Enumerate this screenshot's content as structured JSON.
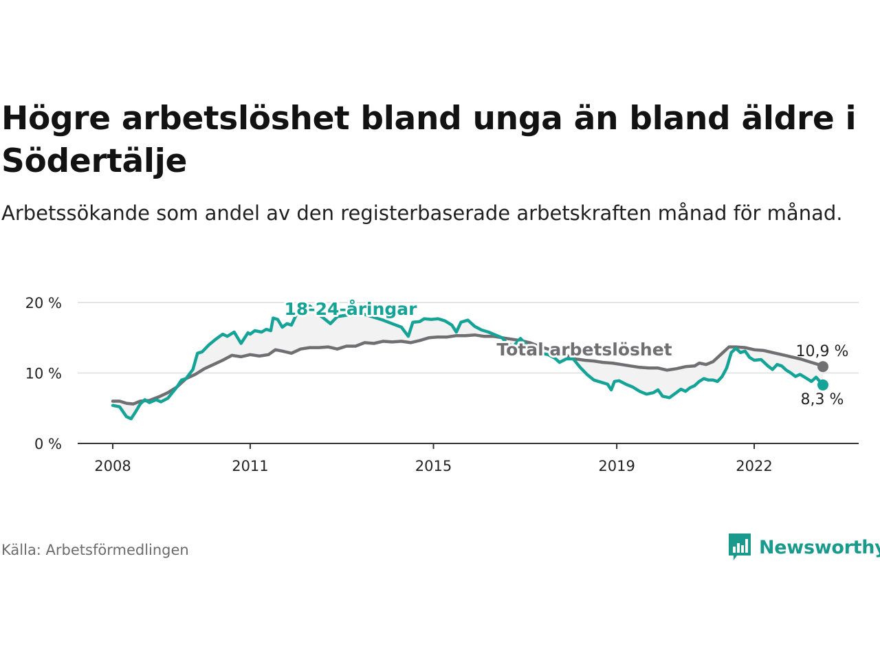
{
  "header": {
    "title": "Högre arbetslöshet bland unga än bland äldre i Södertälje",
    "subtitle": "Arbetssökande som andel av den registerbaserade arbetskraften månad för månad."
  },
  "footer": {
    "source": "Källa: Arbetsförmedlingen",
    "brand": "Newsworthy"
  },
  "colors": {
    "youth": "#14a396",
    "total": "#6f6f72",
    "gap_fill": "#f2f2f2",
    "grid": "#dcdcdc",
    "axis": "#333333",
    "brand": "#1a9a8c"
  },
  "chart_data": {
    "type": "line",
    "title": "Högre arbetslöshet bland unga än bland äldre i Södertälje",
    "xlabel": "",
    "ylabel": "",
    "ylim": [
      0,
      20
    ],
    "xlim": [
      2007.3,
      2023.75
    ],
    "y_ticks": [
      0,
      10,
      20
    ],
    "y_tick_labels": [
      "0 %",
      "10 %",
      "20 %"
    ],
    "x_ticks": [
      2008,
      2011,
      2015,
      2019,
      2022
    ],
    "x_tick_labels": [
      "2008",
      "2011",
      "2015",
      "2019",
      "2022"
    ],
    "grid": true,
    "series": [
      {
        "name": "18-24-åringar",
        "label": "18-24-åringar",
        "end_label": "8,3 %",
        "points": [
          [
            2008.0,
            5.4
          ],
          [
            2008.15,
            5.2
          ],
          [
            2008.3,
            3.8
          ],
          [
            2008.4,
            3.5
          ],
          [
            2008.5,
            4.5
          ],
          [
            2008.6,
            5.6
          ],
          [
            2008.7,
            6.2
          ],
          [
            2008.8,
            5.8
          ],
          [
            2008.95,
            6.2
          ],
          [
            2009.05,
            5.9
          ],
          [
            2009.2,
            6.4
          ],
          [
            2009.4,
            8.0
          ],
          [
            2009.5,
            9.0
          ],
          [
            2009.6,
            9.2
          ],
          [
            2009.75,
            10.5
          ],
          [
            2009.85,
            12.8
          ],
          [
            2009.95,
            13.0
          ],
          [
            2010.1,
            14.0
          ],
          [
            2010.25,
            14.8
          ],
          [
            2010.4,
            15.5
          ],
          [
            2010.5,
            15.2
          ],
          [
            2010.65,
            15.8
          ],
          [
            2010.8,
            14.2
          ],
          [
            2010.95,
            15.7
          ],
          [
            2011.0,
            15.5
          ],
          [
            2011.1,
            16.0
          ],
          [
            2011.25,
            15.8
          ],
          [
            2011.35,
            16.2
          ],
          [
            2011.45,
            16.0
          ],
          [
            2011.5,
            17.8
          ],
          [
            2011.6,
            17.6
          ],
          [
            2011.7,
            16.5
          ],
          [
            2011.8,
            17.0
          ],
          [
            2011.9,
            16.8
          ],
          [
            2012.0,
            18.2
          ],
          [
            2012.15,
            18.9
          ],
          [
            2012.3,
            19.5
          ],
          [
            2012.45,
            18.5
          ],
          [
            2012.6,
            17.8
          ],
          [
            2012.75,
            17.0
          ],
          [
            2012.9,
            18.0
          ],
          [
            2013.1,
            18.2
          ],
          [
            2013.3,
            18.5
          ],
          [
            2013.5,
            18.3
          ],
          [
            2013.7,
            17.9
          ],
          [
            2013.9,
            17.5
          ],
          [
            2014.1,
            17.0
          ],
          [
            2014.3,
            16.5
          ],
          [
            2014.45,
            15.2
          ],
          [
            2014.55,
            17.2
          ],
          [
            2014.7,
            17.3
          ],
          [
            2014.8,
            17.7
          ],
          [
            2014.95,
            17.6
          ],
          [
            2015.1,
            17.7
          ],
          [
            2015.25,
            17.4
          ],
          [
            2015.4,
            16.8
          ],
          [
            2015.5,
            15.8
          ],
          [
            2015.6,
            17.2
          ],
          [
            2015.75,
            17.5
          ],
          [
            2015.9,
            16.6
          ],
          [
            2016.05,
            16.1
          ],
          [
            2016.2,
            15.8
          ],
          [
            2016.35,
            15.4
          ],
          [
            2016.5,
            15.0
          ],
          [
            2016.6,
            14.2
          ],
          [
            2016.75,
            13.8
          ],
          [
            2016.9,
            14.9
          ],
          [
            2017.05,
            13.8
          ],
          [
            2017.2,
            13.4
          ],
          [
            2017.35,
            12.8
          ],
          [
            2017.5,
            12.6
          ],
          [
            2017.65,
            12.1
          ],
          [
            2017.75,
            11.5
          ],
          [
            2017.9,
            12.0
          ],
          [
            2018.05,
            12.0
          ],
          [
            2018.2,
            10.8
          ],
          [
            2018.35,
            9.8
          ],
          [
            2018.5,
            9.0
          ],
          [
            2018.65,
            8.7
          ],
          [
            2018.8,
            8.4
          ],
          [
            2018.88,
            7.6
          ],
          [
            2018.95,
            8.8
          ],
          [
            2019.05,
            8.9
          ],
          [
            2019.2,
            8.4
          ],
          [
            2019.35,
            8.0
          ],
          [
            2019.5,
            7.4
          ],
          [
            2019.65,
            7.0
          ],
          [
            2019.8,
            7.2
          ],
          [
            2019.9,
            7.6
          ],
          [
            2020.0,
            6.7
          ],
          [
            2020.15,
            6.5
          ],
          [
            2020.3,
            7.2
          ],
          [
            2020.4,
            7.7
          ],
          [
            2020.5,
            7.4
          ],
          [
            2020.6,
            7.9
          ],
          [
            2020.7,
            8.2
          ],
          [
            2020.8,
            8.8
          ],
          [
            2020.9,
            9.2
          ],
          [
            2021.0,
            9.0
          ],
          [
            2021.1,
            9.0
          ],
          [
            2021.2,
            8.8
          ],
          [
            2021.3,
            9.5
          ],
          [
            2021.4,
            10.7
          ],
          [
            2021.5,
            12.9
          ],
          [
            2021.6,
            13.5
          ],
          [
            2021.7,
            12.9
          ],
          [
            2021.8,
            13.1
          ],
          [
            2021.9,
            12.2
          ],
          [
            2022.0,
            11.8
          ],
          [
            2022.15,
            11.9
          ],
          [
            2022.3,
            11.0
          ],
          [
            2022.4,
            10.5
          ],
          [
            2022.5,
            11.2
          ],
          [
            2022.6,
            11.0
          ],
          [
            2022.7,
            10.4
          ],
          [
            2022.8,
            10.0
          ],
          [
            2022.9,
            9.5
          ],
          [
            2023.0,
            9.8
          ],
          [
            2023.1,
            9.4
          ],
          [
            2023.25,
            8.8
          ],
          [
            2023.35,
            9.4
          ],
          [
            2023.5,
            8.3
          ]
        ]
      },
      {
        "name": "Total arbetslöshet",
        "label": "Total arbetslöshet",
        "end_label": "10,9 %",
        "points": [
          [
            2008.0,
            6.0
          ],
          [
            2008.15,
            6.0
          ],
          [
            2008.3,
            5.7
          ],
          [
            2008.45,
            5.6
          ],
          [
            2008.6,
            6.0
          ],
          [
            2008.8,
            6.1
          ],
          [
            2009.0,
            6.6
          ],
          [
            2009.2,
            7.2
          ],
          [
            2009.4,
            8.0
          ],
          [
            2009.6,
            9.2
          ],
          [
            2009.8,
            9.8
          ],
          [
            2010.0,
            10.6
          ],
          [
            2010.2,
            11.2
          ],
          [
            2010.4,
            11.8
          ],
          [
            2010.6,
            12.5
          ],
          [
            2010.8,
            12.3
          ],
          [
            2011.0,
            12.6
          ],
          [
            2011.2,
            12.4
          ],
          [
            2011.4,
            12.6
          ],
          [
            2011.55,
            13.3
          ],
          [
            2011.7,
            13.1
          ],
          [
            2011.9,
            12.8
          ],
          [
            2012.1,
            13.4
          ],
          [
            2012.3,
            13.6
          ],
          [
            2012.5,
            13.6
          ],
          [
            2012.7,
            13.7
          ],
          [
            2012.9,
            13.4
          ],
          [
            2013.1,
            13.8
          ],
          [
            2013.3,
            13.8
          ],
          [
            2013.5,
            14.3
          ],
          [
            2013.7,
            14.2
          ],
          [
            2013.9,
            14.5
          ],
          [
            2014.1,
            14.4
          ],
          [
            2014.3,
            14.5
          ],
          [
            2014.5,
            14.3
          ],
          [
            2014.7,
            14.6
          ],
          [
            2014.9,
            15.0
          ],
          [
            2015.1,
            15.1
          ],
          [
            2015.3,
            15.1
          ],
          [
            2015.5,
            15.3
          ],
          [
            2015.7,
            15.3
          ],
          [
            2015.9,
            15.4
          ],
          [
            2016.1,
            15.2
          ],
          [
            2016.3,
            15.2
          ],
          [
            2016.5,
            15.0
          ],
          [
            2016.7,
            14.8
          ],
          [
            2016.9,
            14.6
          ],
          [
            2017.1,
            14.3
          ],
          [
            2017.3,
            13.8
          ],
          [
            2017.5,
            13.4
          ],
          [
            2017.7,
            12.9
          ],
          [
            2017.9,
            12.5
          ],
          [
            2018.1,
            12.0
          ],
          [
            2018.3,
            11.8
          ],
          [
            2018.5,
            11.7
          ],
          [
            2018.7,
            11.5
          ],
          [
            2018.9,
            11.4
          ],
          [
            2019.1,
            11.2
          ],
          [
            2019.3,
            11.0
          ],
          [
            2019.5,
            10.8
          ],
          [
            2019.7,
            10.7
          ],
          [
            2019.9,
            10.7
          ],
          [
            2020.1,
            10.4
          ],
          [
            2020.3,
            10.6
          ],
          [
            2020.5,
            10.9
          ],
          [
            2020.7,
            11.0
          ],
          [
            2020.8,
            11.4
          ],
          [
            2020.95,
            11.2
          ],
          [
            2021.1,
            11.6
          ],
          [
            2021.3,
            12.8
          ],
          [
            2021.45,
            13.7
          ],
          [
            2021.6,
            13.7
          ],
          [
            2021.8,
            13.6
          ],
          [
            2022.0,
            13.3
          ],
          [
            2022.2,
            13.2
          ],
          [
            2022.4,
            12.9
          ],
          [
            2022.6,
            12.6
          ],
          [
            2022.8,
            12.3
          ],
          [
            2023.0,
            12.0
          ],
          [
            2023.2,
            11.6
          ],
          [
            2023.4,
            11.2
          ],
          [
            2023.5,
            10.9
          ]
        ]
      }
    ]
  }
}
